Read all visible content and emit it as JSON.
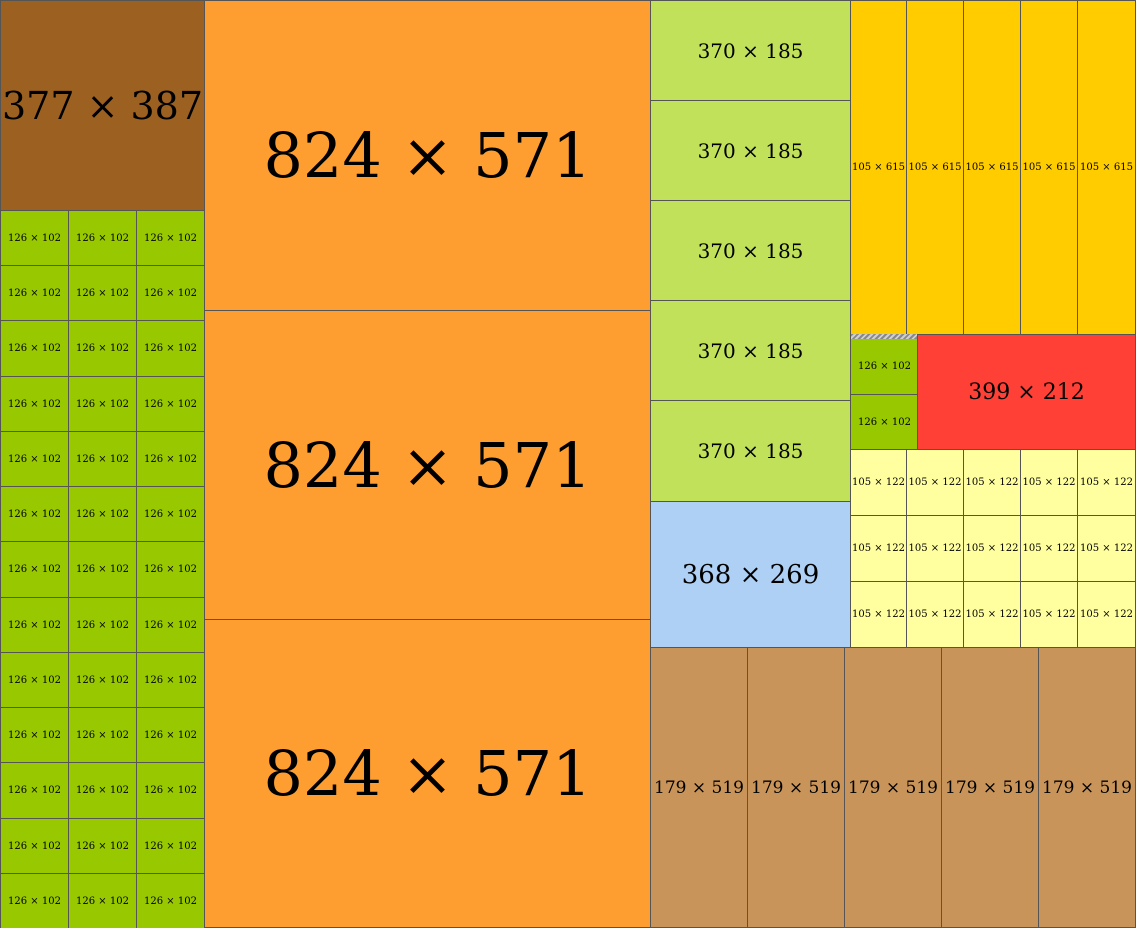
{
  "groups": [
    {
      "id": "A",
      "label": "377 × 387",
      "color": "#9C6120",
      "count": 1
    },
    {
      "id": "B",
      "label": "126 × 102",
      "color": "#98C900",
      "count": 41
    },
    {
      "id": "C",
      "label": "824 × 571",
      "color": "#FF9E30",
      "count": 3
    },
    {
      "id": "D",
      "label": "370 × 185",
      "color": "#C1E15A",
      "count": 5
    },
    {
      "id": "E",
      "label": "368 × 269",
      "color": "#ADD0F4",
      "count": 1
    },
    {
      "id": "F",
      "label": "105 × 615",
      "color": "#FFCC00",
      "count": 5
    },
    {
      "id": "G",
      "label": "399 × 212",
      "color": "#FF4036",
      "count": 1
    },
    {
      "id": "H",
      "label": "105 × 122",
      "color": "#FFFFA0",
      "count": 15
    },
    {
      "id": "I",
      "label": "179 × 519",
      "color": "#C8945A",
      "count": 5
    }
  ]
}
